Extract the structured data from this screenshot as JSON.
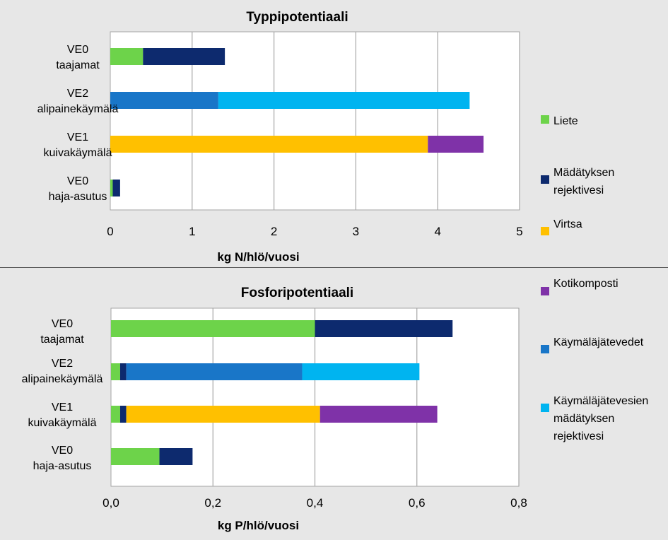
{
  "colors": {
    "liete": "#6dd34a",
    "madatyksen_rejektivesi": "#0d2a6e",
    "virtsa": "#ffc000",
    "kotikomposti": "#7f32a8",
    "kaymalajatevedet": "#1976c8",
    "kaymalajatevesien_rejektivesi": "#00b4f0"
  },
  "legend": [
    {
      "key": "liete",
      "lines": [
        "Liete"
      ]
    },
    {
      "key": "madatyksen_rejektivesi",
      "lines": [
        "Mädätyksen",
        "rejektivesi"
      ]
    },
    {
      "key": "virtsa",
      "lines": [
        "Virtsa"
      ]
    },
    {
      "key": "kotikomposti",
      "lines": [
        "Kotikomposti"
      ]
    },
    {
      "key": "kaymalajatevedet",
      "lines": [
        "Käymäläjätevedet"
      ]
    },
    {
      "key": "kaymalajatevesien_rejektivesi",
      "lines": [
        "Käymäläjätevesien",
        "mädätyksen",
        "rejektivesi"
      ]
    }
  ],
  "chart_data": [
    {
      "type": "bar",
      "orientation": "horizontal",
      "stacked": true,
      "title": "Typpipotentiaali",
      "xlabel": "kg N/hlö/vuosi",
      "xlim": [
        0,
        5
      ],
      "xticks": [
        0,
        1,
        2,
        3,
        4,
        5
      ],
      "xtick_labels": [
        "0",
        "1",
        "2",
        "3",
        "4",
        "5"
      ],
      "categories": [
        [
          "VE0",
          "taajamat"
        ],
        [
          "VE2",
          "alipainekäymälä"
        ],
        [
          "VE1",
          "kuivakäymälä"
        ],
        [
          "VE0",
          "haja-asutus"
        ]
      ],
      "series": [
        {
          "name": "Liete",
          "key": "liete",
          "values": [
            0.4,
            0,
            0,
            0.03
          ]
        },
        {
          "name": "Mädätyksen rejektivesi",
          "key": "madatyksen_rejektivesi",
          "values": [
            1.0,
            0,
            0,
            0.09
          ]
        },
        {
          "name": "Virtsa",
          "key": "virtsa",
          "values": [
            0,
            0,
            3.88,
            0
          ]
        },
        {
          "name": "Kotikomposti",
          "key": "kotikomposti",
          "values": [
            0,
            0,
            0.68,
            0
          ]
        },
        {
          "name": "Käymäläjätevedet",
          "key": "kaymalajatevedet",
          "values": [
            0,
            1.32,
            0,
            0
          ]
        },
        {
          "name": "Käymäläjätevesien mädätyksen rejektivesi",
          "key": "kaymalajatevesien_rejektivesi",
          "values": [
            0,
            3.07,
            0,
            0
          ]
        }
      ]
    },
    {
      "type": "bar",
      "orientation": "horizontal",
      "stacked": true,
      "title": "Fosforipotentiaali",
      "xlabel": "kg P/hlö/vuosi",
      "xlim": [
        0,
        0.8
      ],
      "xticks": [
        0,
        0.2,
        0.4,
        0.6,
        0.8
      ],
      "xtick_labels": [
        "0,0",
        "0,2",
        "0,4",
        "0,6",
        "0,8"
      ],
      "categories": [
        [
          "VE0",
          "taajamat"
        ],
        [
          "VE2",
          "alipainekäymälä"
        ],
        [
          "VE1",
          "kuivakäymälä"
        ],
        [
          "VE0",
          "haja-asutus"
        ]
      ],
      "series": [
        {
          "name": "Liete",
          "key": "liete",
          "values": [
            0.4,
            0.018,
            0.018,
            0.095
          ]
        },
        {
          "name": "Mädätyksen rejektivesi",
          "key": "madatyksen_rejektivesi",
          "values": [
            0.27,
            0.012,
            0.012,
            0.065
          ]
        },
        {
          "name": "Virtsa",
          "key": "virtsa",
          "values": [
            0,
            0,
            0.38,
            0
          ]
        },
        {
          "name": "Kotikomposti",
          "key": "kotikomposti",
          "values": [
            0,
            0,
            0.23,
            0
          ]
        },
        {
          "name": "Käymäläjätevedet",
          "key": "kaymalajatevedet",
          "values": [
            0,
            0.345,
            0,
            0
          ]
        },
        {
          "name": "Käymäläjätevesien mädätyksen rejektivesi",
          "key": "kaymalajatevesien_rejektivesi",
          "values": [
            0,
            0.23,
            0,
            0
          ]
        }
      ]
    }
  ]
}
